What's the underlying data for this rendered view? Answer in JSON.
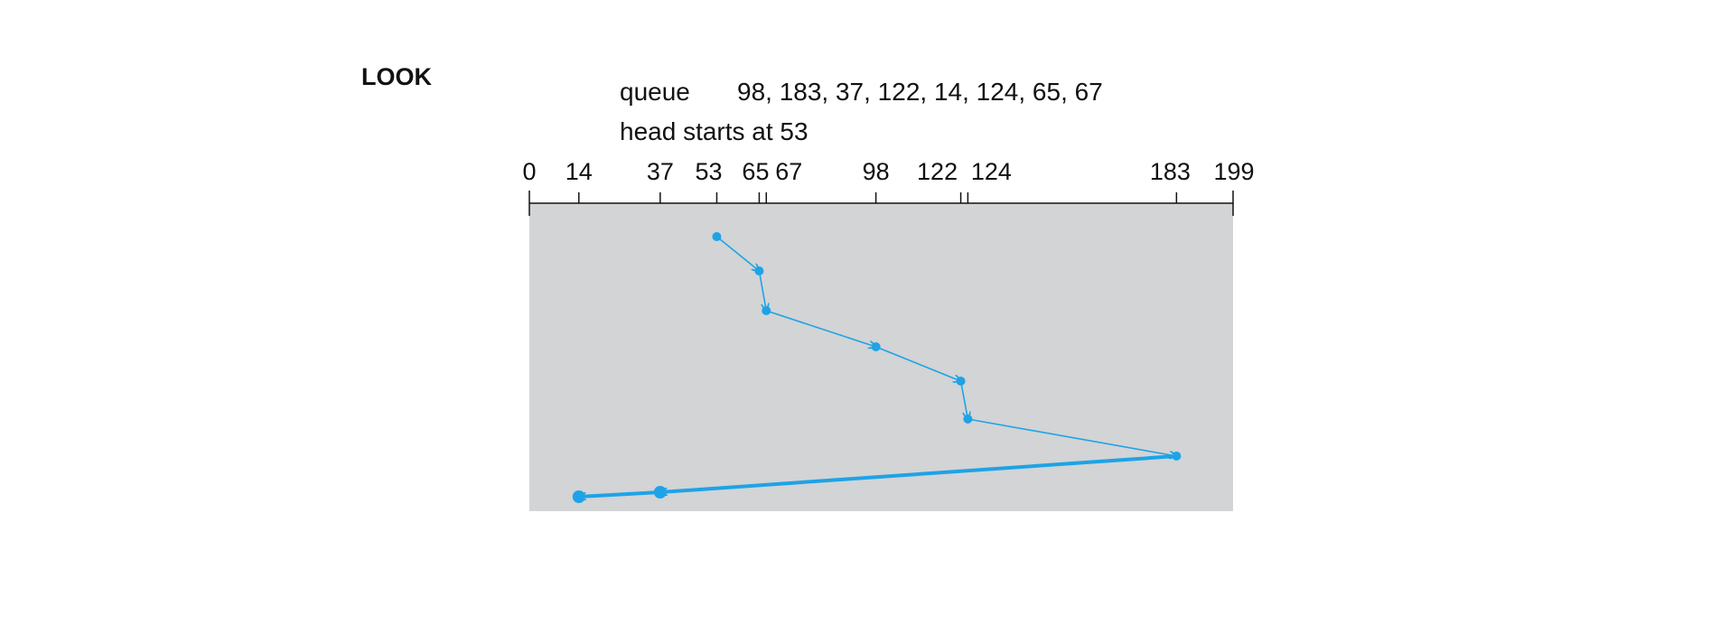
{
  "title": "LOOK",
  "queue": {
    "label": "queue",
    "values": "98, 183, 37, 122, 14, 124, 65, 67"
  },
  "head_text": "head starts at 53",
  "axis": {
    "min": 0,
    "max": 199,
    "ticks": [
      0,
      14,
      37,
      53,
      65,
      67,
      98,
      122,
      124,
      183,
      199
    ]
  },
  "service_order": [
    53,
    65,
    67,
    98,
    122,
    124,
    183,
    37,
    14
  ],
  "colors": {
    "panel": "#d2d4d6",
    "path": "#1ea3e6",
    "axis": "#111111"
  }
}
